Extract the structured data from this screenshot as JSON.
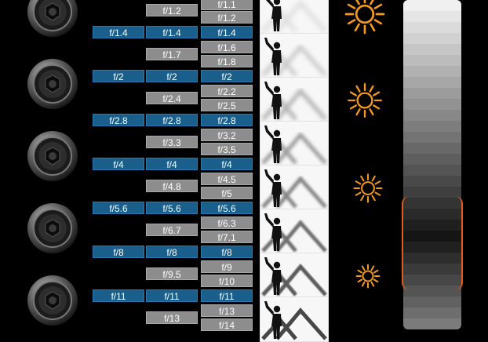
{
  "stops": {
    "full": [
      "f/1.4",
      "f/2",
      "f/2.8",
      "f/4",
      "f/5.6",
      "f/8",
      "f/11"
    ],
    "half": [
      "f/1.2",
      "f/1.7",
      "f/2.4",
      "f/3.3",
      "f/4.8",
      "f/6.7",
      "f/9.5",
      "f/13"
    ],
    "third_full": [
      "f/1.4",
      "f/2",
      "f/2.8",
      "f/4",
      "f/5.6",
      "f/8",
      "f/11"
    ],
    "third": [
      "f/1.1",
      "f/1.2",
      "f/1.6",
      "f/1.8",
      "f/2.2",
      "f/2.5",
      "f/3.2",
      "f/3.5",
      "f/4.5",
      "f/5",
      "f/6.3",
      "f/7.1",
      "f/9",
      "f/10",
      "f/13",
      "f/14"
    ]
  },
  "colors": {
    "full_stop_bg": "#1a5f8c",
    "intermediate_bg": "#8d8d8d",
    "sun": "#f39a1c",
    "highlight_edge": "#e35b1a"
  },
  "icons": {
    "aperture": "camera-aperture-icon",
    "scene": "person-mountains-scene-icon",
    "sun": "sun-icon"
  }
}
